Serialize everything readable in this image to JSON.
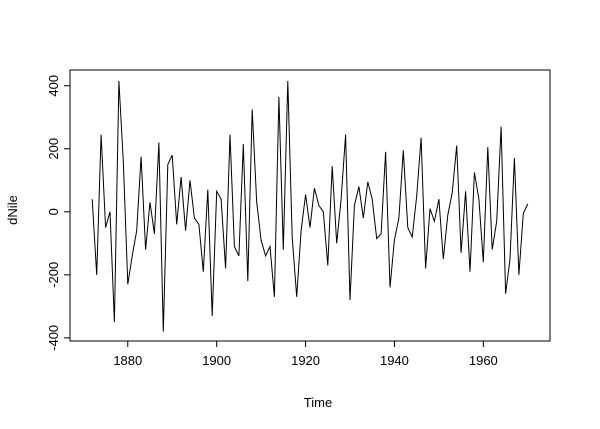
{
  "chart_data": {
    "type": "line",
    "title": "",
    "xlabel": "Time",
    "ylabel": "dNile",
    "xlim": [
      1867,
      1975
    ],
    "ylim": [
      -410,
      450
    ],
    "xticks": [
      1880,
      1900,
      1920,
      1940,
      1960
    ],
    "yticks": [
      -400,
      -200,
      0,
      200,
      400
    ],
    "grid": false,
    "series": [
      {
        "x": [
          1872,
          1873,
          1874,
          1875,
          1876,
          1877,
          1878,
          1879,
          1880,
          1881,
          1882,
          1883,
          1884,
          1885,
          1886,
          1887,
          1888,
          1889,
          1890,
          1891,
          1892,
          1893,
          1894,
          1895,
          1896,
          1897,
          1898,
          1899,
          1900,
          1901,
          1902,
          1903,
          1904,
          1905,
          1906,
          1907,
          1908,
          1909,
          1910,
          1911,
          1912,
          1913,
          1914,
          1915,
          1916,
          1917,
          1918,
          1919,
          1920,
          1921,
          1922,
          1923,
          1924,
          1925,
          1926,
          1927,
          1928,
          1929,
          1930,
          1931,
          1932,
          1933,
          1934,
          1935,
          1936,
          1937,
          1938,
          1939,
          1940,
          1941,
          1942,
          1943,
          1944,
          1945,
          1946,
          1947,
          1948,
          1949,
          1950,
          1951,
          1952,
          1953,
          1954,
          1955,
          1956,
          1957,
          1958,
          1959,
          1960,
          1961,
          1962,
          1963,
          1964,
          1965,
          1966,
          1967,
          1968,
          1969,
          1970
        ],
        "values": [
          40,
          -200,
          245,
          -50,
          0,
          -350,
          415,
          160,
          -230,
          -140,
          -60,
          175,
          -120,
          30,
          -70,
          220,
          -380,
          150,
          180,
          -40,
          110,
          -60,
          100,
          -20,
          -40,
          -190,
          70,
          -330,
          65,
          40,
          -180,
          245,
          -110,
          -140,
          215,
          -220,
          325,
          30,
          -90,
          -140,
          -110,
          -270,
          365,
          -120,
          415,
          -80,
          -270,
          -60,
          55,
          -50,
          75,
          20,
          0,
          -170,
          145,
          -100,
          40,
          245,
          -280,
          20,
          80,
          -20,
          95,
          40,
          -85,
          -70,
          190,
          -240,
          -90,
          -20,
          195,
          -50,
          -80,
          50,
          235,
          -180,
          10,
          -30,
          40,
          -150,
          -10,
          60,
          210,
          -130,
          65,
          -190,
          125,
          40,
          -160,
          205,
          -120,
          -30,
          270,
          -260,
          -150,
          170,
          -200,
          -5,
          25
        ]
      }
    ]
  }
}
